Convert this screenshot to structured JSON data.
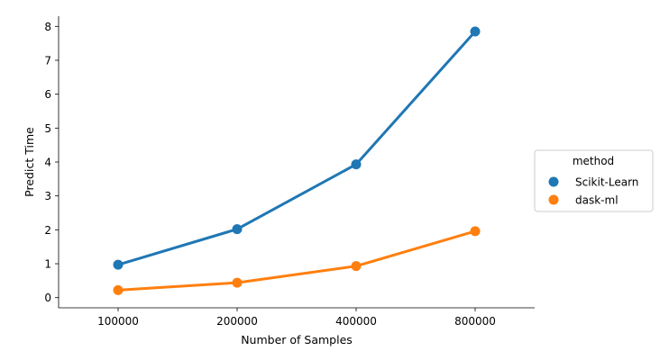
{
  "chart_data": {
    "type": "line",
    "categories": [
      "100000",
      "200000",
      "400000",
      "800000"
    ],
    "series": [
      {
        "name": "Scikit-Learn",
        "values": [
          0.97,
          2.02,
          3.93,
          7.85
        ],
        "color": "#1f77b4"
      },
      {
        "name": "dask-ml",
        "values": [
          0.22,
          0.44,
          0.93,
          1.96
        ],
        "color": "#ff7f0e"
      }
    ],
    "xlabel": "Number of Samples",
    "ylabel": "Predict Time",
    "yticks": [
      "0",
      "1",
      "2",
      "3",
      "4",
      "5",
      "6",
      "7",
      "8"
    ],
    "ylim": [
      -0.3,
      8.3
    ],
    "grid": false,
    "legend": {
      "title": "method",
      "placement": "right"
    }
  }
}
